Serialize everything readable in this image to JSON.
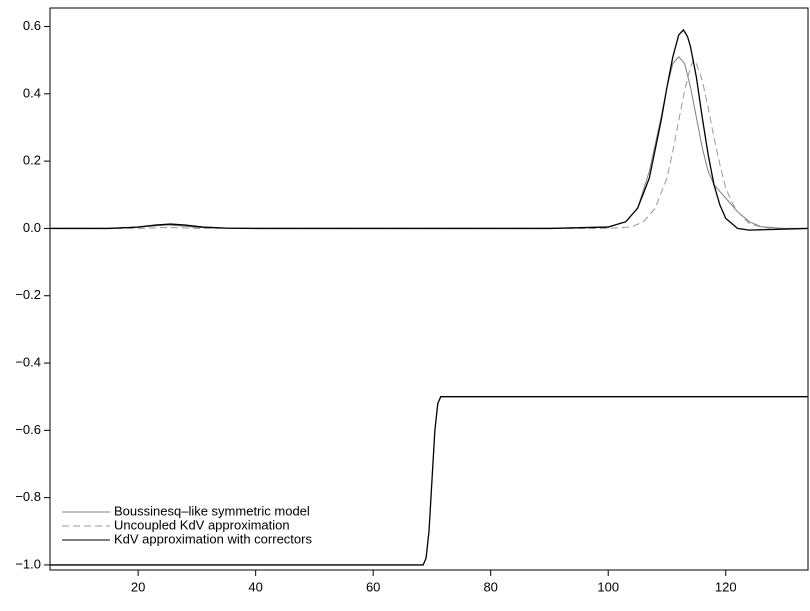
{
  "chart_data": {
    "type": "line",
    "xlim": [
      5,
      134
    ],
    "ylim": [
      -1.015,
      0.655
    ],
    "xticks": [
      20,
      40,
      60,
      80,
      100,
      120
    ],
    "yticks": [
      {
        "value": -1.0,
        "label": "−1.0"
      },
      {
        "value": -0.8,
        "label": "−0.8"
      },
      {
        "value": -0.6,
        "label": "−0.6"
      },
      {
        "value": -0.4,
        "label": "−0.4"
      },
      {
        "value": -0.2,
        "label": "−0.2"
      },
      {
        "value": 0,
        "label": "0.0"
      },
      0.2,
      0.4,
      0.6
    ],
    "legend": "lower-left",
    "series": [
      {
        "name": "Boussinesq–like symmetric model",
        "color": "#808080",
        "dash": false,
        "x": [
          5,
          15,
          20,
          23,
          25,
          27,
          30,
          35,
          40,
          60,
          90,
          100,
          103,
          105,
          107,
          109,
          110,
          111,
          112,
          113,
          114,
          115,
          116,
          117,
          118,
          119,
          120,
          122,
          124,
          126,
          130,
          134
        ],
        "values": [
          0,
          0,
          0.004,
          0.008,
          0.01,
          0.008,
          0.003,
          0.0005,
          0,
          0,
          0,
          0.005,
          0.02,
          0.06,
          0.17,
          0.33,
          0.42,
          0.49,
          0.51,
          0.49,
          0.42,
          0.33,
          0.24,
          0.17,
          0.13,
          0.11,
          0.09,
          0.05,
          0.02,
          0.005,
          0,
          0
        ]
      },
      {
        "name": "Uncoupled KdV approximation",
        "color": "#999999",
        "dash": true,
        "x": [
          5,
          20,
          25,
          30,
          40,
          100,
          104,
          106,
          108,
          110,
          111,
          112,
          113,
          114,
          114.5,
          115,
          116,
          117,
          118,
          119,
          120,
          121,
          122,
          124,
          126,
          128,
          134
        ],
        "values": [
          0,
          0,
          0.003,
          0,
          0,
          0,
          0.005,
          0.02,
          0.06,
          0.15,
          0.23,
          0.32,
          0.41,
          0.48,
          0.5,
          0.49,
          0.44,
          0.36,
          0.27,
          0.19,
          0.12,
          0.08,
          0.05,
          0.015,
          0.004,
          0,
          0
        ]
      },
      {
        "name": "KdV approximation with correctors",
        "color": "#000000",
        "dash": false,
        "x": [
          5,
          15,
          20,
          23,
          25.5,
          28,
          31,
          35,
          40,
          90,
          100,
          103,
          105,
          107,
          109,
          110,
          111,
          112,
          112.8,
          113.5,
          114,
          115,
          116,
          117,
          118,
          119,
          120,
          122,
          124,
          128,
          134
        ],
        "values": [
          0,
          0,
          0.004,
          0.01,
          0.013,
          0.01,
          0.004,
          0.001,
          0,
          0,
          0.004,
          0.02,
          0.06,
          0.15,
          0.32,
          0.42,
          0.51,
          0.575,
          0.59,
          0.57,
          0.54,
          0.45,
          0.33,
          0.22,
          0.13,
          0.07,
          0.03,
          0,
          -0.005,
          -0.003,
          0
        ]
      },
      {
        "color": "#000000",
        "dash": false,
        "x": [
          5,
          68.5,
          69,
          69.5,
          70,
          70.5,
          71,
          71.5,
          134
        ],
        "values": [
          -1,
          -1,
          -0.98,
          -0.9,
          -0.75,
          -0.6,
          -0.52,
          -0.5,
          -0.5
        ]
      }
    ]
  }
}
